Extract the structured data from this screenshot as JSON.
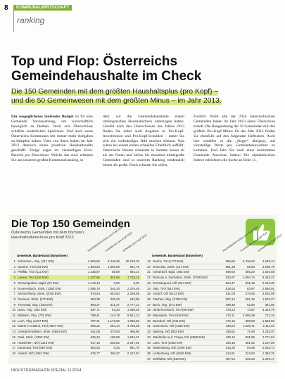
{
  "header": {
    "page": "8",
    "section": "KOMMUNALWIRTSCHAFT",
    "rubric": "ranking"
  },
  "article": {
    "title": "Top und Flop: Österreichs Gemeindehaushalte im Check",
    "subtitle": "Die 150 Gemeinden mit dem größten Haushaltsplus (pro Kopf) – und die 50 Gemeinwesen mit dem größten Minus – im Jahr 2013.",
    "lead": "Ein ausgeglichenes laufendes Budget",
    "columns": [
      "ist für eine Gemeinde Voraussetzung, um wirtschaftlich beweglich zu bleiben. Doch erst Überschüsse schaffen zusätzlichen Spielraum. Und auch wenn Österreichs Kommunen mit immer mehr Aufgaben zu kämpfen haben: Viele von ihnen haben im Jahr 2013 dennoch einen positiven Haushaltssaldo geschafft. Einige sogar im vierstelligen Euro-Bereich pro Einwohner. Welche das sind, erfahren Sie aus unserem großen Kommunalranking, in",
      "dem wir die Gemeindehaushalte einem umfangreichen Haushaltscheck unterzogen haben. Gereiht nach den Überschüssen des Jahres 2013 finden Sie dabei auch Angaben zu Pro-Kopf-Investitionen und Pro-Kopf-Schulden – damit Sie sich ein vollständiges Bild machen können. Was schon bei einem ersten schnellen Überblick auffällt: Österreichs Westen schneidet in Summe besser ab als der Osten und kleine bis maximal mittelgroße Gemeinden sind in unserem Ranking tendenziell besser als große. Doch schauen Sie selbst.",
      "Freilich: Nicht alle der 2354 österreichischen Gemeinden haben im Jahr 2013 einen Überschuss erzielt. Die Rangordnung der 50 Gemeinden mit den größten Pro-Kopf-Minus für das Jahr 2013 finden Sie ebenfalls auf den folgenden Heftseiten. Auch hier schaffen es die „Sieger“ übrigens, auf vierstellige Werte pro Gemeindeeinwohner zu kommen. Und falls Sie nach einer bestimmten Gemeinde Ausschau halten: Die alphabetischen Indexe erleichtern die Suche ab Seite 11."
    ]
  },
  "table": {
    "title": "Die Top 150 Gemeinden",
    "subtitle": "Österreichs Gemeinden mit dem höchsten Haushaltsüberschuss pro Kopf 2013.",
    "headers": [
      "Gemeinde, Bundesland (Einwohner)",
      "Haushaltsüberschuss pro Kopf 2013",
      "Investitionen pro Kopf 2013",
      "Schulden pro Kopf 2013"
    ],
    "left": [
      [
        "1",
        "Schröcken, Vbg. (212 EW)",
        "3.906,85",
        "8.445,35",
        "20.233,25"
      ],
      [
        "2",
        "Namlos, Tirol (83 EW)",
        "1.863,64",
        "1.866,88",
        "561,75"
      ],
      [
        "3",
        "Pfafflar, Tirol (112 EW)",
        "1.235,87",
        "68,59",
        "582,14"
      ],
      [
        "4",
        "Lavant, Tirol (230 EW)",
        "1.227,56",
        "331,84",
        "2.713,11"
      ],
      [
        "5",
        "Tschanigraben, Bgld. (63 EW)",
        "1.175,43",
        "0,00",
        "0,00"
      ],
      [
        "6",
        "Donnersbach, Stmk. (1383 EW)",
        "1.085,78",
        "346,33",
        "2.376,48"
      ],
      [
        "7",
        "Sörsdorfberg, Stmk. (2028 EW)",
        "974,64",
        "853,63",
        "2.186,65"
      ],
      [
        "8",
        "Garanas, Stmk. (270 EW)",
        "904,39",
        "326,26",
        "243,85"
      ],
      [
        "9",
        "Thomatal, Sbg. (333 EW)",
        "863,37",
        "511,27",
        "2.777,12"
      ],
      [
        "10",
        "Düns, Vbg. (384 EW)",
        "837,71",
        "63,34",
        "1.089,38"
      ],
      [
        "11",
        "Bildstein, Vbg. (731 EW)",
        "799,41",
        "144,78",
        "8.521,12"
      ],
      [
        "12",
        "Lech, Vbg. (1527 EW)",
        "797,31",
        "1.178,86",
        "1.096,65"
      ],
      [
        "13",
        "Matrei in Osttirol, Tirol (4627 EW)",
        "665,22",
        "284,14",
        "3.759,28"
      ],
      [
        "14",
        "Unterpremstätten, Stmk. (3664 EW)",
        "631,08",
        "370,63",
        "486,86"
      ],
      [
        "15",
        "Gaal, Stmk. (1393 EW)",
        "626,22",
        "185,09",
        "1.634,21"
      ],
      [
        "16",
        "Hausleiten, NÖ (1316 EW)",
        "617,15",
        "538,82",
        "2.247,81"
      ],
      [
        "17",
        "Kaunertal, Tirol (597 EW)",
        "602,53",
        "8,36",
        "981,78"
      ],
      [
        "18",
        "Alsdorf, NÖ (1657 EW)",
        "576,77",
        "366,37",
        "2.167,97"
      ]
    ],
    "right": [
      [
        "19",
        "Gerlos, Tirol (775 EW)",
        "566,59",
        "3.436,22",
        "4.249,13"
      ],
      [
        "20",
        "Osterwitz, Stmk. (147 EW)",
        "561,38",
        "98,63",
        "4.286,79"
      ],
      [
        "21",
        "Schandorf, Bgld. (283 EW)",
        "548,64",
        "386,20",
        "1.526,58"
      ],
      [
        "22",
        "Ramsau a. Dachstein, Stmk. (2768 EW)",
        "532,67",
        "1.694,74",
        "6.363,22"
      ],
      [
        "23",
        "St.Radegund, OÖ (624 EW)",
        "524,47",
        "331,18",
        "2.313,35"
      ],
      [
        "24",
        "Vals, Tirol (544 EW)",
        "518,53",
        "83,87",
        "2.566,91"
      ],
      [
        "25",
        "Andorf, OÖ (5123 EW)",
        "511,09",
        "275,08",
        "3.833,08"
      ],
      [
        "26",
        "Flachau, Sbg. (2790 EW)",
        "507,14",
        "591,32",
        "1.976,27"
      ],
      [
        "27",
        "Buch, Vbg. (573 EW)",
        "488,49",
        "62,83",
        "351,85"
      ],
      [
        "28",
        "Hinterhornbach, Tirol (96 EW)",
        "475,24",
        "73,87",
        "3.322,79"
      ],
      [
        "29",
        "Mariastein, Tirol (348 EW)",
        "472,11",
        "2.065,38",
        "712,15"
      ],
      [
        "30",
        "Bassdorf, NÖ (646 EW)",
        "472,10",
        "309,08",
        "1.568,82"
      ],
      [
        "31",
        "Gutenstein, NÖ (1300 EW)",
        "440,02",
        "1.633,71",
        "2.111,94"
      ],
      [
        "32",
        "Matzing, NÖ (803 EW)",
        "435,62",
        "71,99",
        "3.225,07"
      ],
      [
        "33",
        "Waidhofen a.d. Thaya, NÖ (2680 EW)",
        "435,15",
        "831,99",
        "2.771,84"
      ],
      [
        "34",
        "Lans, Tirol (1053 EW)",
        "428,18",
        "301,62",
        "1.167,59"
      ],
      [
        "35",
        "Rabensburg, NÖ (1090 EW)",
        "416,29",
        "94,06",
        "2.052,73"
      ],
      [
        "36",
        "Lichtenberg, OÖ (2636 EW)",
        "414,91",
        "224,94",
        "1.382,75"
      ],
      [
        "37",
        "Wolfsthal, NÖ (842 EW)",
        "407,54",
        "335,23",
        "2.249,17"
      ]
    ]
  },
  "footer": "INDUSTRIEMAGAZIN SPEZIAL 11/2014"
}
